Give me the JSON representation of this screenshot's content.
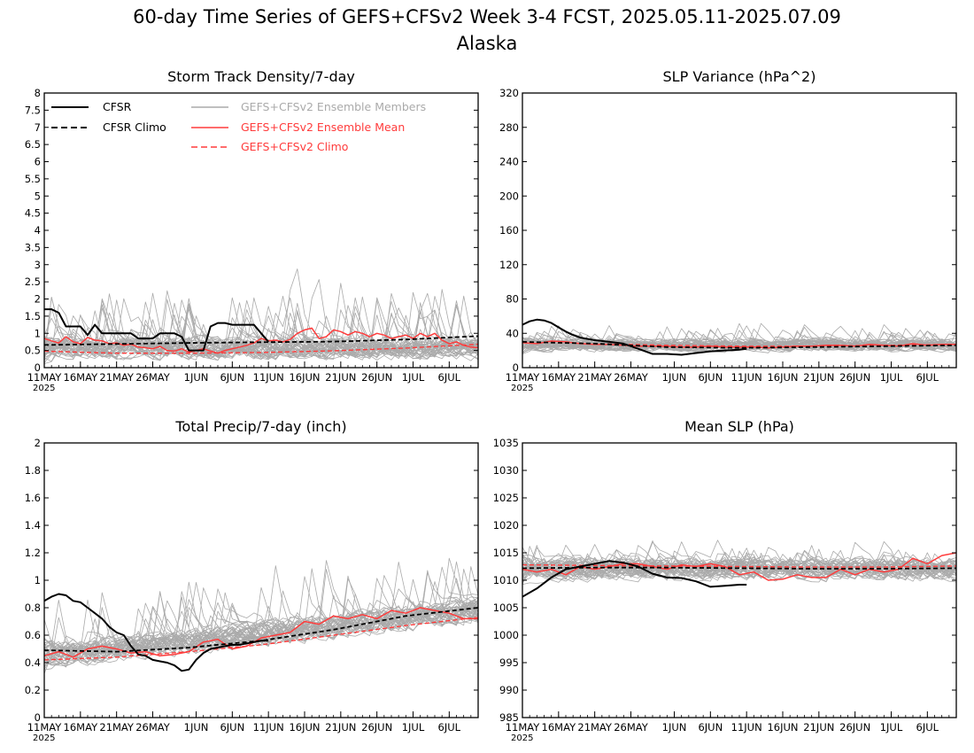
{
  "title": {
    "line1": "60-day Time Series of GEFS+CFSv2 Week 3-4 FCST, 2025.05.11-2025.07.09",
    "line2": "Alaska"
  },
  "x_axis": {
    "tick_labels": [
      "11MAY",
      "16MAY",
      "21MAY",
      "26MAY",
      "1JUN",
      "6JUN",
      "11JUN",
      "16JUN",
      "21JUN",
      "26JUN",
      "1JUL",
      "6JUL"
    ],
    "tick_days": [
      0,
      5,
      10,
      15,
      21,
      26,
      31,
      36,
      41,
      46,
      51,
      56
    ],
    "year_label": "2025",
    "range_days": [
      0,
      60
    ]
  },
  "legend": {
    "cfsr": "CFSR",
    "cfsr_climo": "CFSR Climo",
    "members": "GEFS+CFSv2 Ensemble Members",
    "ens_mean": "GEFS+CFSv2 Ensemble Mean",
    "model_climo": "GEFS+CFSv2 Climo"
  },
  "colors": {
    "cfsr": "#000000",
    "members": "#aaaaaa",
    "ens_mean": "#ff3b3b",
    "model_climo": "#ff3b3b",
    "legend_members_text": "#aaaaaa",
    "legend_model_text": "#ff3b3b"
  },
  "chart_data": [
    {
      "id": "storm",
      "type": "line",
      "title": "Storm Track Density/7-day",
      "ylim": [
        0,
        8
      ],
      "yticks": [
        0,
        0.5,
        1,
        1.5,
        2,
        2.5,
        3,
        3.5,
        4,
        4.5,
        5,
        5.5,
        6,
        6.5,
        7,
        7.5,
        8
      ],
      "ytick_labels": [
        "0",
        "0.5",
        "1",
        "1.5",
        "2",
        "2.5",
        "3",
        "3.5",
        "4",
        "4.5",
        "5",
        "5.5",
        "6",
        "6.5",
        "7",
        "7.5",
        "8"
      ],
      "cfsr": {
        "x": [
          0,
          1,
          2,
          3,
          4,
          5,
          6,
          7,
          8,
          9,
          10,
          11,
          12,
          13,
          14,
          15,
          16,
          17,
          18,
          19,
          20,
          21,
          22,
          23,
          24,
          25,
          26,
          27,
          28,
          29,
          30,
          31
        ],
        "y": [
          1.7,
          1.7,
          1.6,
          1.2,
          1.2,
          1.2,
          0.95,
          1.25,
          1.0,
          1.0,
          1.0,
          1.0,
          1.0,
          0.85,
          0.85,
          0.85,
          1.0,
          1.0,
          1.0,
          0.9,
          0.5,
          0.5,
          0.5,
          1.2,
          1.3,
          1.3,
          1.25,
          1.25,
          1.25,
          1.25,
          1.0,
          0.75
        ]
      },
      "cfsr_climo": {
        "x": [
          0,
          10,
          20,
          30,
          40,
          50,
          60
        ],
        "y": [
          0.66,
          0.69,
          0.72,
          0.74,
          0.76,
          0.82,
          0.92
        ]
      },
      "model_climo": {
        "x": [
          0,
          10,
          20,
          30,
          40,
          50,
          60
        ],
        "y": [
          0.48,
          0.42,
          0.42,
          0.44,
          0.49,
          0.57,
          0.68
        ]
      },
      "ens_mean": {
        "x": [
          0,
          1,
          2,
          3,
          4,
          5,
          6,
          7,
          8,
          9,
          10,
          11,
          12,
          13,
          14,
          15,
          16,
          17,
          18,
          19,
          20,
          21,
          22,
          23,
          24,
          25,
          26,
          27,
          28,
          29,
          30,
          31,
          32,
          33,
          34,
          35,
          36,
          37,
          38,
          39,
          40,
          41,
          42,
          43,
          44,
          45,
          46,
          47,
          48,
          49,
          50,
          51,
          52,
          53,
          54,
          55,
          56,
          57,
          58,
          59,
          60
        ],
        "y": [
          0.85,
          0.78,
          0.72,
          0.9,
          0.75,
          0.7,
          0.88,
          0.8,
          0.78,
          0.7,
          0.72,
          0.65,
          0.68,
          0.6,
          0.58,
          0.55,
          0.62,
          0.5,
          0.48,
          0.55,
          0.45,
          0.5,
          0.55,
          0.48,
          0.42,
          0.5,
          0.55,
          0.6,
          0.65,
          0.72,
          0.85,
          0.78,
          0.8,
          0.75,
          0.82,
          1.0,
          1.1,
          1.15,
          0.85,
          0.9,
          1.1,
          1.05,
          0.95,
          1.05,
          1.0,
          0.9,
          1.0,
          0.95,
          0.85,
          0.9,
          0.95,
          0.85,
          1.0,
          0.9,
          1.0,
          0.8,
          0.7,
          0.75,
          0.65,
          0.6,
          0.58
        ]
      },
      "members": {
        "count": 40,
        "base": 0.55,
        "spread": 0.45,
        "spike_prob": 0.07,
        "spike_size": 1.6,
        "clip_low": 0
      }
    },
    {
      "id": "slpvar",
      "type": "line",
      "title": "SLP Variance (hPa^2)",
      "ylim": [
        0,
        320
      ],
      "yticks": [
        0,
        40,
        80,
        120,
        160,
        200,
        240,
        280,
        320
      ],
      "ytick_labels": [
        "0",
        "40",
        "80",
        "120",
        "160",
        "200",
        "240",
        "280",
        "320"
      ],
      "cfsr": {
        "x": [
          0,
          1,
          2,
          3,
          4,
          5,
          6,
          7,
          8,
          10,
          12,
          14,
          16,
          18,
          20,
          22,
          24,
          26,
          28,
          30,
          31
        ],
        "y": [
          50,
          54,
          56,
          55,
          52,
          47,
          42,
          38,
          35,
          32,
          30,
          28,
          22,
          16,
          16,
          15,
          17,
          19,
          20,
          21,
          22
        ]
      },
      "cfsr_climo": {
        "x": [
          0,
          10,
          20,
          30,
          40,
          50,
          60
        ],
        "y": [
          30,
          28,
          24,
          23,
          24,
          25,
          26
        ]
      },
      "model_climo": {
        "x": [
          0,
          10,
          20,
          30,
          40,
          50,
          60
        ],
        "y": [
          30,
          28,
          26,
          25,
          25,
          26,
          27
        ]
      },
      "ens_mean": {
        "x": [
          0,
          2,
          4,
          6,
          8,
          10,
          12,
          14,
          16,
          18,
          20,
          22,
          24,
          26,
          28,
          30,
          32,
          34,
          36,
          38,
          40,
          42,
          44,
          46,
          48,
          50,
          52,
          54,
          56,
          58,
          60
        ],
        "y": [
          29,
          28,
          31,
          30,
          28,
          27,
          27,
          26,
          25,
          25,
          25,
          24,
          24,
          25,
          24,
          24,
          24,
          23,
          24,
          25,
          25,
          26,
          26,
          25,
          27,
          26,
          25,
          28,
          26,
          27,
          27
        ]
      },
      "members": {
        "count": 40,
        "base": 26,
        "spread": 10,
        "spike_prob": 0.05,
        "spike_size": 20,
        "clip_low": 5
      }
    },
    {
      "id": "precip",
      "type": "line",
      "title": "Total Precip/7-day (inch)",
      "ylim": [
        0,
        2
      ],
      "yticks": [
        0,
        0.2,
        0.4,
        0.6,
        0.8,
        1.0,
        1.2,
        1.4,
        1.6,
        1.8,
        2.0
      ],
      "ytick_labels": [
        "0",
        "0.2",
        "0.4",
        "0.6",
        "0.8",
        "1",
        "1.2",
        "1.4",
        "1.6",
        "1.8",
        "2"
      ],
      "cfsr": {
        "x": [
          0,
          1,
          2,
          3,
          4,
          5,
          6,
          7,
          8,
          9,
          10,
          11,
          12,
          13,
          14,
          15,
          16,
          17,
          18,
          19,
          20,
          21,
          22,
          23,
          24,
          25,
          26,
          27,
          28,
          29,
          30,
          31
        ],
        "y": [
          0.85,
          0.88,
          0.9,
          0.89,
          0.85,
          0.84,
          0.8,
          0.76,
          0.72,
          0.66,
          0.62,
          0.6,
          0.52,
          0.46,
          0.45,
          0.42,
          0.41,
          0.4,
          0.38,
          0.34,
          0.35,
          0.42,
          0.47,
          0.5,
          0.51,
          0.52,
          0.53,
          0.53,
          0.54,
          0.55,
          0.56,
          0.56
        ]
      },
      "cfsr_climo": {
        "x": [
          0,
          10,
          20,
          30,
          40,
          50,
          60
        ],
        "y": [
          0.49,
          0.48,
          0.51,
          0.56,
          0.64,
          0.74,
          0.8
        ]
      },
      "model_climo": {
        "x": [
          0,
          10,
          20,
          30,
          40,
          50,
          60
        ],
        "y": [
          0.42,
          0.44,
          0.48,
          0.53,
          0.6,
          0.67,
          0.73
        ]
      },
      "ens_mean": {
        "x": [
          0,
          2,
          4,
          6,
          8,
          10,
          12,
          14,
          16,
          18,
          20,
          22,
          24,
          26,
          28,
          30,
          32,
          34,
          36,
          38,
          40,
          42,
          44,
          46,
          48,
          50,
          52,
          54,
          56,
          58,
          60
        ],
        "y": [
          0.45,
          0.48,
          0.44,
          0.5,
          0.52,
          0.5,
          0.47,
          0.48,
          0.45,
          0.46,
          0.48,
          0.55,
          0.57,
          0.5,
          0.52,
          0.58,
          0.6,
          0.62,
          0.7,
          0.68,
          0.74,
          0.72,
          0.75,
          0.72,
          0.78,
          0.76,
          0.8,
          0.78,
          0.76,
          0.72,
          0.72
        ]
      },
      "members": {
        "count": 40,
        "trend": [
          0.45,
          0.78
        ],
        "spread": 0.13,
        "spike_prob": 0.04,
        "spike_size": 0.45,
        "clip_low": 0.08
      }
    },
    {
      "id": "slp",
      "type": "line",
      "title": "Mean SLP (hPa)",
      "ylim": [
        985,
        1035
      ],
      "yticks": [
        985,
        990,
        995,
        1000,
        1005,
        1010,
        1015,
        1020,
        1025,
        1030,
        1035
      ],
      "ytick_labels": [
        "985",
        "990",
        "995",
        "1000",
        "1005",
        "1010",
        "1015",
        "1020",
        "1025",
        "1030",
        "1035"
      ],
      "cfsr": {
        "x": [
          0,
          2,
          4,
          6,
          8,
          10,
          12,
          14,
          16,
          18,
          20,
          22,
          24,
          26,
          28,
          30,
          31
        ],
        "y": [
          1007,
          1008.5,
          1010.5,
          1012,
          1012.5,
          1013,
          1013.5,
          1013.2,
          1012.5,
          1011.2,
          1010.5,
          1010.4,
          1009.8,
          1008.8,
          1009,
          1009.2,
          1009.2
        ]
      },
      "cfsr_climo": {
        "x": [
          0,
          10,
          20,
          30,
          40,
          50,
          60
        ],
        "y": [
          1012.2,
          1012.3,
          1012.3,
          1012.2,
          1012.1,
          1012.1,
          1012.2
        ]
      },
      "model_climo": {
        "x": [
          0,
          10,
          20,
          30,
          40,
          50,
          60
        ],
        "y": [
          1012.8,
          1012.7,
          1012.6,
          1012.5,
          1012.4,
          1012.4,
          1012.6
        ]
      },
      "ens_mean": {
        "x": [
          0,
          2,
          4,
          6,
          8,
          10,
          12,
          14,
          16,
          18,
          20,
          22,
          24,
          26,
          28,
          30,
          32,
          34,
          36,
          38,
          40,
          42,
          44,
          46,
          48,
          50,
          52,
          54,
          56,
          58,
          60
        ],
        "y": [
          1012,
          1011.5,
          1012,
          1011,
          1012.5,
          1012,
          1012.5,
          1013,
          1013,
          1012.5,
          1012,
          1012.8,
          1012.5,
          1013,
          1012.5,
          1011,
          1011.5,
          1010,
          1010.2,
          1011,
          1010.5,
          1010.5,
          1012,
          1011,
          1012,
          1011.5,
          1012,
          1014,
          1013,
          1014.5,
          1015
        ]
      },
      "members": {
        "count": 40,
        "base": 1012,
        "spread": 2.8,
        "spike_prob": 0.05,
        "spike_size": 4,
        "clip_low": 985
      }
    }
  ]
}
